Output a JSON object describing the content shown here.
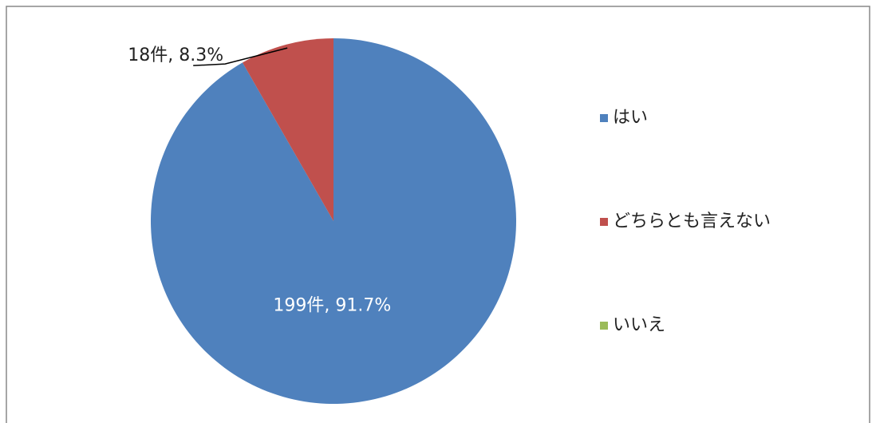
{
  "chart_data": {
    "type": "pie",
    "categories": [
      "はい",
      "どちらとも言えない",
      "いいえ"
    ],
    "values": [
      199,
      18,
      0
    ],
    "value_labels": [
      "199件, 91.7%",
      "18件, 8.3%",
      null
    ],
    "colors": [
      "#4f81bd",
      "#c0504d",
      "#9bbb59"
    ],
    "legend": "right"
  }
}
